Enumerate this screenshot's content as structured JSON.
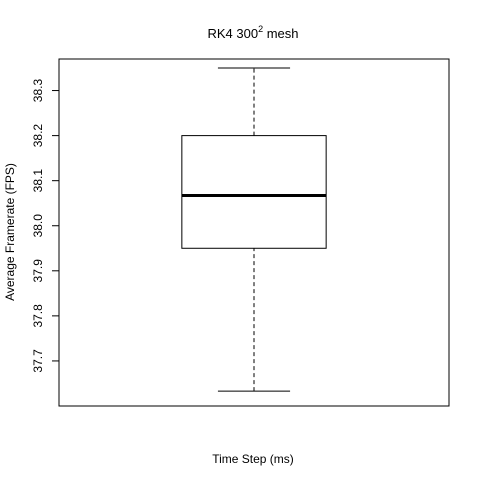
{
  "chart_data": {
    "type": "box",
    "title_main": "RK4  300",
    "title_sup": "2",
    "title_tail": "  mesh",
    "xlabel": "Time Step (ms)",
    "ylabel": "Average Framerate (FPS)",
    "ylim": [
      37.6,
      38.37
    ],
    "yticks": [
      37.7,
      37.8,
      37.9,
      38.0,
      38.1,
      38.2,
      38.3
    ],
    "ytick_labels": [
      "37.7",
      "37.8",
      "37.9",
      "38.0",
      "38.1",
      "38.2",
      "38.3"
    ],
    "boxes": [
      {
        "min": 37.633,
        "q1": 37.95,
        "median": 38.067,
        "q3": 38.2,
        "max": 38.35
      }
    ]
  }
}
